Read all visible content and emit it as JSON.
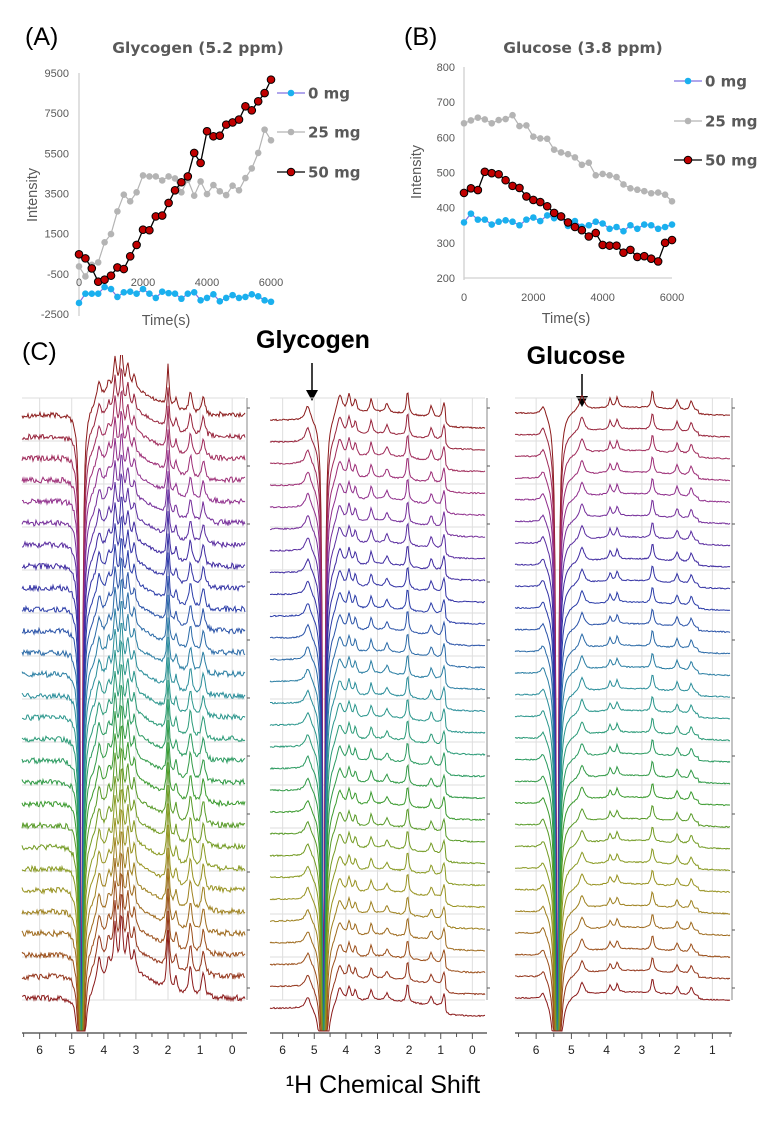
{
  "chart_data": [
    {
      "panel_label": "(A)",
      "type": "line",
      "title": "Glycogen (5.2 ppm)",
      "xlabel": "Time(s)",
      "ylabel": "Intensity",
      "xlim": [
        0,
        6000
      ],
      "ylim": [
        -2500,
        9500
      ],
      "xticks": [
        "0",
        "2000",
        "4000",
        "6000"
      ],
      "yticks": [
        "9500",
        "7500",
        "5500",
        "3500",
        "1500",
        "-500",
        "-2500"
      ],
      "legend_position": "right",
      "x": [
        0,
        200,
        400,
        600,
        800,
        1000,
        1200,
        1400,
        1600,
        1800,
        2000,
        2200,
        2400,
        2600,
        2800,
        3000,
        3200,
        3400,
        3600,
        3800,
        4000,
        4200,
        4400,
        4600,
        4800,
        5000,
        5200,
        5400,
        5600,
        5800,
        6000
      ],
      "series": [
        {
          "name": "0 mg",
          "color": "#1ab0ee",
          "line_color": "#8070e0",
          "values": [
            -1950,
            -1490,
            -1490,
            -1490,
            -1160,
            -1260,
            -1650,
            -1420,
            -1390,
            -1490,
            -1260,
            -1490,
            -1700,
            -1390,
            -1460,
            -1490,
            -1740,
            -1490,
            -1420,
            -1820,
            -1700,
            -1520,
            -1870,
            -1700,
            -1560,
            -1700,
            -1650,
            -1520,
            -1620,
            -1820,
            -1890
          ]
        },
        {
          "name": "25 mg",
          "color": "#b4b4b4",
          "line_color": "#b4b4b4",
          "values": [
            -130,
            -630,
            -50,
            70,
            1070,
            1480,
            2610,
            3440,
            3110,
            3560,
            4400,
            4350,
            4350,
            4150,
            4350,
            4250,
            3560,
            4190,
            3390,
            4100,
            3470,
            3920,
            3610,
            3420,
            3890,
            3660,
            4270,
            4750,
            5520,
            6680,
            6150
          ]
        },
        {
          "name": "50 mg",
          "color": "#c00000",
          "line_color": "#000000",
          "values": [
            470,
            270,
            -230,
            -890,
            -790,
            -590,
            -180,
            -260,
            370,
            940,
            1700,
            1670,
            2360,
            2400,
            3030,
            3660,
            4060,
            4350,
            5520,
            5020,
            6600,
            6350,
            6380,
            6930,
            7040,
            7180,
            7840,
            7640,
            8090,
            8500,
            9170
          ]
        }
      ]
    },
    {
      "panel_label": "(B)",
      "type": "line",
      "title": "Glucose (3.8 ppm)",
      "xlabel": "Time(s)",
      "ylabel": "Intensity",
      "xlim": [
        0,
        6000
      ],
      "ylim": [
        200,
        800
      ],
      "xticks": [
        "0",
        "2000",
        "4000",
        "6000"
      ],
      "yticks": [
        "800",
        "700",
        "600",
        "500",
        "400",
        "300",
        "200"
      ],
      "legend_position": "right",
      "x": [
        0,
        200,
        400,
        600,
        800,
        1000,
        1200,
        1400,
        1600,
        1800,
        2000,
        2200,
        2400,
        2600,
        2800,
        3000,
        3200,
        3400,
        3600,
        3800,
        4000,
        4200,
        4400,
        4600,
        4800,
        5000,
        5200,
        5400,
        5600,
        5800,
        6000
      ],
      "series": [
        {
          "name": "0 mg",
          "color": "#1ab0ee",
          "line_color": "#8070e0",
          "values": [
            358,
            383,
            366,
            366,
            352,
            360,
            364,
            360,
            350,
            366,
            372,
            362,
            378,
            370,
            372,
            348,
            362,
            346,
            350,
            360,
            355,
            340,
            345,
            333,
            350,
            340,
            352,
            350,
            340,
            345,
            352
          ]
        },
        {
          "name": "25 mg",
          "color": "#b4b4b4",
          "line_color": "#b4b4b4",
          "values": [
            640,
            648,
            656,
            651,
            640,
            649,
            652,
            663,
            632,
            634,
            602,
            597,
            596,
            565,
            557,
            552,
            543,
            522,
            528,
            492,
            496,
            492,
            487,
            466,
            455,
            451,
            447,
            441,
            443,
            437,
            418
          ]
        },
        {
          "name": "50 mg",
          "color": "#c00000",
          "line_color": "#000000",
          "values": [
            442,
            455,
            450,
            502,
            498,
            495,
            478,
            462,
            456,
            432,
            422,
            416,
            404,
            385,
            375,
            358,
            345,
            336,
            318,
            328,
            294,
            292,
            292,
            272,
            280,
            260,
            262,
            255,
            247,
            300,
            308
          ]
        }
      ]
    },
    {
      "panel_label": "(C)",
      "type": "line",
      "subtype": "stacked NMR spectra",
      "xlabel": "¹H Chemical Shift",
      "annotations": [
        {
          "text": "Glycogen",
          "ppm": 5.2,
          "panel": 2
        },
        {
          "text": "Glucose",
          "ppm": 3.8,
          "panel": 3
        }
      ],
      "trace_count": 28,
      "spectra": [
        {
          "ppm_range": [
            6.55,
            -0.4
          ],
          "xticks": [
            "6",
            "5",
            "4",
            "3",
            "2",
            "1",
            "0"
          ],
          "water_dip_ppm": 4.7,
          "peaks_ppm": [
            4.15,
            3.85,
            3.65,
            3.45,
            3.25,
            3.05,
            2.0,
            1.75,
            1.3,
            0.9
          ]
        },
        {
          "ppm_range": [
            6.4,
            -0.4
          ],
          "xticks": [
            "6",
            "5",
            "4",
            "3",
            "2",
            "1",
            "0"
          ],
          "water_dip_ppm": 4.7,
          "peaks_ppm": [
            5.2,
            4.2,
            3.9,
            3.7,
            3.2,
            2.7,
            2.05,
            1.3,
            0.9
          ]
        },
        {
          "ppm_range": [
            6.6,
            0.5
          ],
          "xticks": [
            "6",
            "5",
            "4",
            "3",
            "2",
            "1"
          ],
          "water_dip_ppm": 5.4,
          "peaks_ppm": [
            5.8,
            4.7,
            3.9,
            3.7,
            2.7,
            2.0,
            1.6
          ]
        }
      ]
    }
  ]
}
